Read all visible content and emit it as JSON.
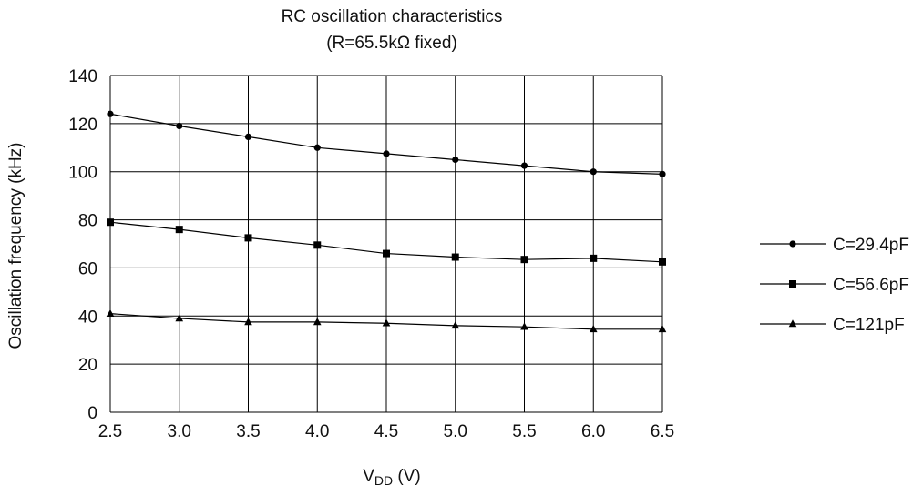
{
  "chart_data": {
    "type": "line",
    "title": "RC oscillation characteristics",
    "subtitle": "(R=65.5kΩ fixed)",
    "xlabel": {
      "main": "V",
      "sub": "DD",
      "unit": " (V)"
    },
    "ylabel": "Oscillation frequency (kHz)",
    "x": [
      2.5,
      3.0,
      3.5,
      4.0,
      4.5,
      5.0,
      5.5,
      6.0,
      6.5
    ],
    "xticks": [
      "2.5",
      "3.0",
      "3.5",
      "4.0",
      "4.5",
      "5.0",
      "5.5",
      "6.0",
      "6.5"
    ],
    "yticks": [
      "0",
      "20",
      "40",
      "60",
      "80",
      "100",
      "120",
      "140"
    ],
    "xlim": [
      2.5,
      6.5
    ],
    "ylim": [
      0,
      140
    ],
    "grid": true,
    "legend_position": "right",
    "series": [
      {
        "name": "C=29.4pF",
        "marker": "circle",
        "values": [
          124,
          119,
          114.5,
          110,
          107.5,
          105,
          102.5,
          100,
          99
        ]
      },
      {
        "name": "C=56.6pF",
        "marker": "square",
        "values": [
          79,
          76,
          72.5,
          69.5,
          66,
          64.5,
          63.5,
          64,
          62.5
        ]
      },
      {
        "name": "C=121pF",
        "marker": "triangle",
        "values": [
          41,
          39,
          37.5,
          37.5,
          37,
          36,
          35.5,
          34.5,
          34.5
        ]
      }
    ]
  }
}
